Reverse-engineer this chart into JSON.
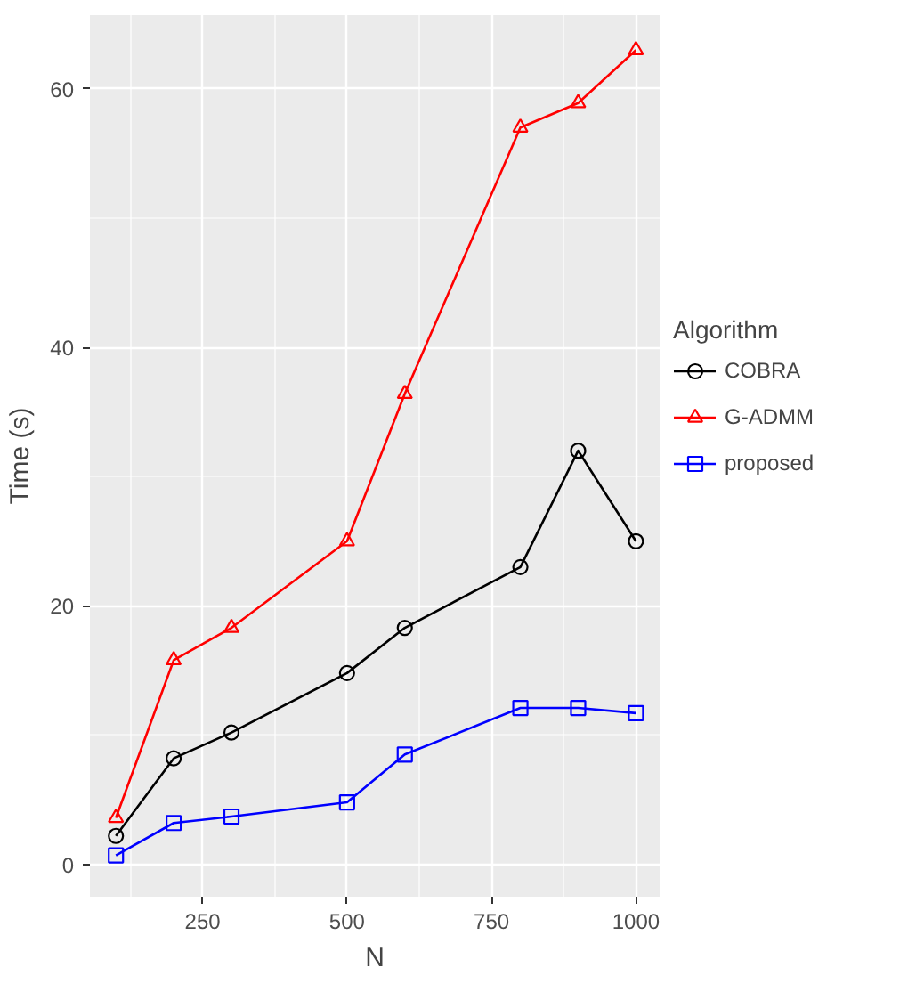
{
  "chart_data": {
    "type": "line",
    "xlabel": "N",
    "ylabel": "Time (s)",
    "legend_title": "Algorithm",
    "legend": "right",
    "grid": true,
    "x": [
      100,
      200,
      300,
      500,
      600,
      800,
      900,
      1000
    ],
    "xlim": [
      55,
      1041
    ],
    "ylim": [
      -2.5,
      65.7
    ],
    "xticks": [
      250,
      500,
      750,
      1000
    ],
    "yticks": [
      0,
      20,
      40,
      60
    ],
    "series": [
      {
        "name": "COBRA",
        "color": "#000000",
        "marker": "circle",
        "values": [
          2.2,
          8.2,
          10.2,
          14.8,
          18.3,
          23.0,
          32.0,
          25.0
        ]
      },
      {
        "name": "G-ADMM",
        "color": "#ff0000",
        "marker": "triangle",
        "values": [
          3.6,
          15.8,
          18.3,
          25.0,
          36.4,
          57.0,
          58.9,
          63.0
        ]
      },
      {
        "name": "proposed",
        "color": "#0000ff",
        "marker": "square",
        "values": [
          0.7,
          3.2,
          3.7,
          4.8,
          8.5,
          12.1,
          12.1,
          11.7
        ]
      }
    ]
  }
}
